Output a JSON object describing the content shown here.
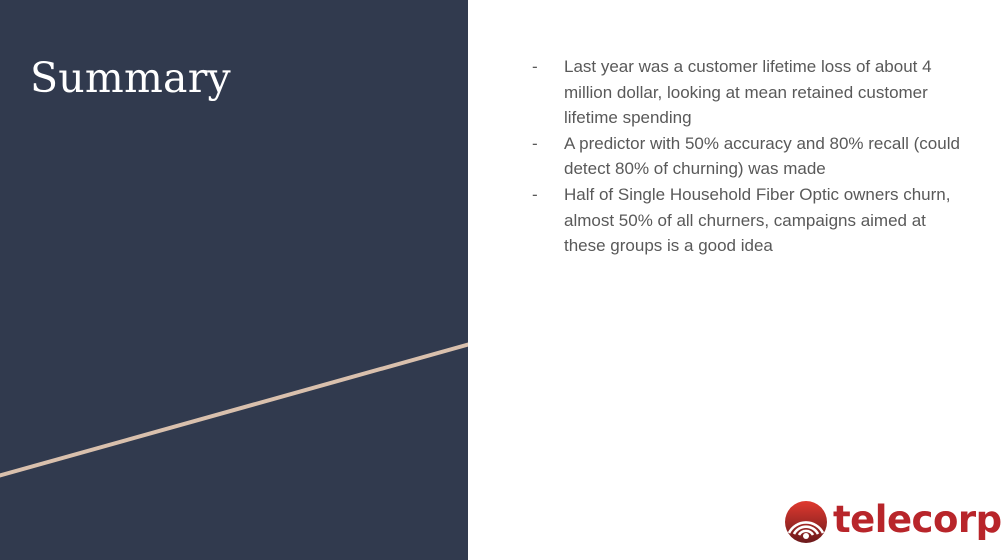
{
  "slide": {
    "title": "Summary",
    "bullet_marker": "-",
    "bullets": [
      "Last year was a customer lifetime loss of about 4 million dollar, looking at mean retained customer lifetime spending",
      "A predictor with 50% accuracy and 80% recall (could detect 80% of churning) was made",
      "Half of Single Household Fiber Optic owners churn, almost 50% of all churners, campaigns aimed at these groups is a good idea"
    ]
  },
  "logo": {
    "text": "telecorp",
    "icon": "signal-waves-icon"
  },
  "colors": {
    "left_panel": "#313a4e",
    "accent_line": "#d9c0ad",
    "body_text": "#595959",
    "logo_red": "#b8252a",
    "logo_dark": "#5a1a1c"
  }
}
